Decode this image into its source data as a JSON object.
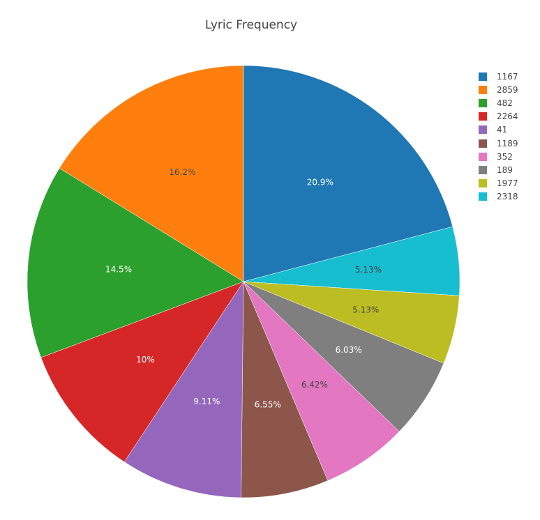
{
  "chart_data": {
    "type": "pie",
    "title": "Lyric Frequency",
    "slices": [
      {
        "label": "1167",
        "percent": 20.9,
        "text": "20.9%",
        "color": "#1f77b4",
        "text_color": "#ffffff"
      },
      {
        "label": "2318",
        "percent": 5.13,
        "text": "5.13%",
        "color": "#17becf",
        "text_color": "#444444"
      },
      {
        "label": "1977",
        "percent": 5.13,
        "text": "5.13%",
        "color": "#bcbd22",
        "text_color": "#444444"
      },
      {
        "label": "189",
        "percent": 6.03,
        "text": "6.03%",
        "color": "#7f7f7f",
        "text_color": "#ffffff"
      },
      {
        "label": "352",
        "percent": 6.42,
        "text": "6.42%",
        "color": "#e377c2",
        "text_color": "#444444"
      },
      {
        "label": "1189",
        "percent": 6.55,
        "text": "6.55%",
        "color": "#8c564b",
        "text_color": "#ffffff"
      },
      {
        "label": "41",
        "percent": 9.11,
        "text": "9.11%",
        "color": "#9467bd",
        "text_color": "#ffffff"
      },
      {
        "label": "2264",
        "percent": 10,
        "text": "10%",
        "color": "#d62728",
        "text_color": "#ffffff"
      },
      {
        "label": "482",
        "percent": 14.5,
        "text": "14.5%",
        "color": "#2ca02c",
        "text_color": "#ffffff"
      },
      {
        "label": "2859",
        "percent": 16.2,
        "text": "16.2%",
        "color": "#ff7f0e",
        "text_color": "#444444"
      }
    ],
    "legend": {
      "position": "top-right",
      "entries": [
        {
          "label": "1167",
          "color": "#1f77b4"
        },
        {
          "label": "2859",
          "color": "#ff7f0e"
        },
        {
          "label": "482",
          "color": "#2ca02c"
        },
        {
          "label": "2264",
          "color": "#d62728"
        },
        {
          "label": "41",
          "color": "#9467bd"
        },
        {
          "label": "1189",
          "color": "#8c564b"
        },
        {
          "label": "352",
          "color": "#e377c2"
        },
        {
          "label": "189",
          "color": "#7f7f7f"
        },
        {
          "label": "1977",
          "color": "#bcbd22"
        },
        {
          "label": "2318",
          "color": "#17becf"
        }
      ]
    },
    "direction": "clockwise",
    "start": "12 o'clock"
  }
}
